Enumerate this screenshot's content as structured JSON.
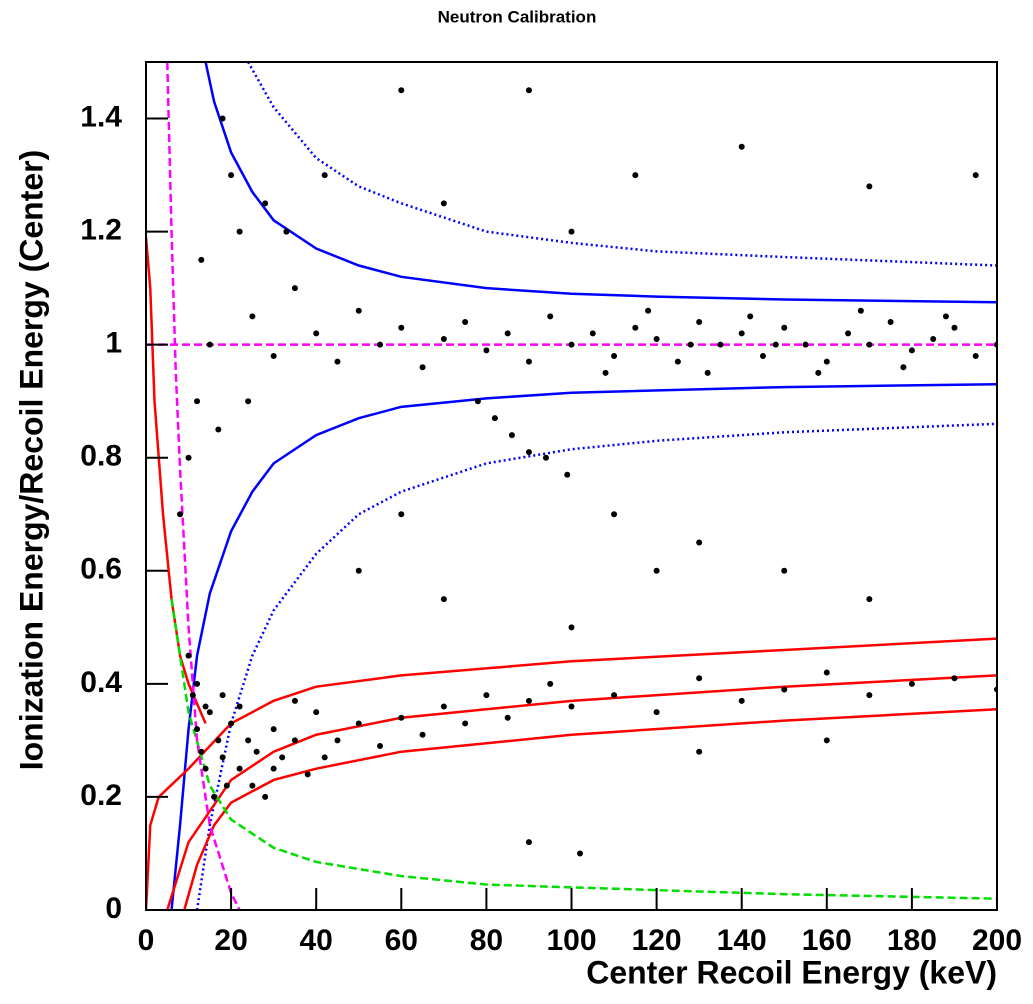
{
  "chart_data": {
    "type": "scatter",
    "title": "Neutron Calibration",
    "x_label": "Center Recoil Energy (keV)",
    "y_label": "Ionization Energy/Recoil Energy (Center)",
    "xlim": [
      0,
      200
    ],
    "ylim": [
      0,
      1.5
    ],
    "xticks": [
      0,
      20,
      40,
      60,
      80,
      100,
      120,
      140,
      160,
      180,
      200
    ],
    "yticks": [
      0,
      0.2,
      0.4,
      0.6,
      0.8,
      1,
      1.2,
      1.4
    ],
    "series": [
      {
        "type": "line",
        "color": "#0000ff",
        "dash": "solid",
        "x": [
          14,
          16,
          20,
          25,
          30,
          40,
          50,
          60,
          80,
          100,
          120,
          150,
          200
        ],
        "values": [
          1.5,
          1.43,
          1.34,
          1.27,
          1.22,
          1.17,
          1.14,
          1.12,
          1.1,
          1.09,
          1.085,
          1.08,
          1.075
        ]
      },
      {
        "type": "line",
        "color": "#0000ff",
        "dash": "solid",
        "x": [
          6,
          8,
          10,
          12,
          15,
          20,
          25,
          30,
          40,
          50,
          60,
          80,
          100,
          150,
          200
        ],
        "values": [
          0,
          0.15,
          0.32,
          0.45,
          0.56,
          0.67,
          0.74,
          0.79,
          0.84,
          0.87,
          0.89,
          0.905,
          0.915,
          0.925,
          0.93
        ]
      },
      {
        "type": "line",
        "color": "#0000ff",
        "dash": "dotted",
        "x": [
          24,
          30,
          40,
          50,
          60,
          80,
          100,
          120,
          150,
          200
        ],
        "values": [
          1.5,
          1.42,
          1.33,
          1.28,
          1.25,
          1.2,
          1.18,
          1.165,
          1.155,
          1.14
        ]
      },
      {
        "type": "line",
        "color": "#0000ff",
        "dash": "dotted",
        "x": [
          12,
          15,
          20,
          25,
          30,
          40,
          50,
          60,
          80,
          100,
          120,
          150,
          200
        ],
        "values": [
          0,
          0.15,
          0.33,
          0.45,
          0.53,
          0.63,
          0.7,
          0.74,
          0.79,
          0.815,
          0.83,
          0.845,
          0.86
        ]
      },
      {
        "type": "line",
        "color": "#ff0000",
        "dash": "solid",
        "x": [
          0,
          1,
          3,
          10,
          20,
          30,
          40,
          60,
          100,
          150,
          200
        ],
        "values": [
          0,
          0.15,
          0.2,
          0.25,
          0.33,
          0.37,
          0.395,
          0.415,
          0.44,
          0.46,
          0.48
        ]
      },
      {
        "type": "line",
        "color": "#ff0000",
        "dash": "solid",
        "x": [
          5,
          10,
          20,
          30,
          40,
          60,
          100,
          150,
          200
        ],
        "values": [
          0,
          0.12,
          0.23,
          0.28,
          0.31,
          0.34,
          0.37,
          0.395,
          0.415
        ]
      },
      {
        "type": "line",
        "color": "#ff0000",
        "dash": "solid",
        "x": [
          9,
          12,
          16,
          20,
          30,
          40,
          60,
          100,
          150,
          200
        ],
        "values": [
          0,
          0.08,
          0.15,
          0.19,
          0.23,
          0.25,
          0.28,
          0.31,
          0.335,
          0.355
        ]
      },
      {
        "type": "line",
        "color": "#ff0000",
        "dash": "solid",
        "x": [
          0,
          1,
          2,
          4,
          6,
          8,
          10,
          14
        ],
        "values": [
          1.19,
          1.1,
          0.9,
          0.7,
          0.55,
          0.45,
          0.4,
          0.33
        ]
      },
      {
        "type": "line",
        "color": "#00dd00",
        "dash": "dashed",
        "x": [
          6,
          10,
          15,
          20,
          30,
          40,
          60,
          80,
          100,
          150,
          200
        ],
        "values": [
          0.55,
          0.35,
          0.22,
          0.16,
          0.11,
          0.085,
          0.06,
          0.045,
          0.04,
          0.028,
          0.02
        ]
      },
      {
        "type": "line",
        "color": "#ff00ff",
        "dash": "dashed",
        "x": [
          5,
          6,
          7,
          8,
          10,
          12,
          15,
          20,
          22
        ],
        "values": [
          1.5,
          1.2,
          0.95,
          0.78,
          0.5,
          0.3,
          0.15,
          0.03,
          0
        ]
      },
      {
        "type": "line",
        "color": "#ff00ff",
        "dash": "dashed",
        "x": [
          0,
          200
        ],
        "values": [
          1,
          1
        ]
      },
      {
        "type": "scatter",
        "color": "#000000",
        "x": [
          25,
          30,
          35,
          40,
          45,
          50,
          55,
          60,
          65,
          70,
          75,
          80,
          85,
          90,
          95,
          100,
          105,
          110,
          115,
          120,
          125,
          130,
          135,
          140,
          145,
          150,
          155,
          160,
          165,
          170,
          175,
          180,
          185,
          190,
          195,
          200,
          128,
          142,
          158,
          168,
          178,
          188,
          132,
          148,
          118,
          108,
          20,
          22,
          28,
          18,
          15,
          12,
          10,
          8,
          13,
          17,
          24,
          33,
          42,
          70,
          90,
          100,
          115,
          140,
          170,
          195,
          60,
          78,
          82,
          86,
          90,
          94,
          99,
          110,
          130,
          150,
          170,
          10,
          11,
          12,
          13,
          14,
          15,
          16,
          17,
          18,
          19,
          20,
          22,
          24,
          26,
          28,
          30,
          32,
          35,
          38,
          40,
          45,
          50,
          55,
          60,
          65,
          70,
          75,
          80,
          85,
          90,
          95,
          100,
          110,
          120,
          130,
          140,
          150,
          160,
          170,
          180,
          190,
          200,
          12,
          14,
          18,
          22,
          25,
          30,
          35,
          42,
          50,
          70,
          100,
          130,
          160,
          90,
          102,
          60,
          120
        ],
        "values": [
          1.05,
          0.98,
          1.1,
          1.02,
          0.97,
          1.06,
          1.0,
          1.03,
          0.96,
          1.01,
          1.04,
          0.99,
          1.02,
          0.97,
          1.05,
          1.0,
          1.02,
          0.98,
          1.03,
          1.01,
          0.97,
          1.04,
          1.0,
          1.02,
          0.98,
          1.03,
          1.0,
          0.97,
          1.02,
          1.0,
          1.04,
          0.99,
          1.01,
          1.03,
          0.98,
          1.0,
          1.0,
          1.05,
          0.95,
          1.06,
          0.96,
          1.05,
          0.95,
          1.0,
          1.06,
          0.95,
          1.3,
          1.2,
          1.25,
          1.4,
          1.0,
          0.9,
          0.8,
          0.7,
          1.15,
          0.85,
          0.9,
          1.2,
          1.3,
          1.25,
          1.45,
          1.2,
          1.3,
          1.35,
          1.28,
          1.3,
          1.45,
          0.9,
          0.87,
          0.84,
          0.81,
          0.8,
          0.77,
          0.7,
          0.65,
          0.6,
          0.55,
          0.45,
          0.38,
          0.32,
          0.28,
          0.25,
          0.35,
          0.2,
          0.3,
          0.27,
          0.22,
          0.33,
          0.25,
          0.3,
          0.28,
          0.2,
          0.32,
          0.27,
          0.3,
          0.24,
          0.35,
          0.3,
          0.33,
          0.29,
          0.34,
          0.31,
          0.36,
          0.33,
          0.38,
          0.34,
          0.37,
          0.4,
          0.36,
          0.38,
          0.35,
          0.41,
          0.37,
          0.39,
          0.42,
          0.38,
          0.4,
          0.41,
          0.39,
          0.4,
          0.36,
          0.38,
          0.36,
          0.22,
          0.25,
          0.37,
          0.27,
          0.6,
          0.55,
          0.5,
          0.28,
          0.3,
          0.12,
          0.1,
          0.7,
          0.6
        ]
      }
    ]
  }
}
